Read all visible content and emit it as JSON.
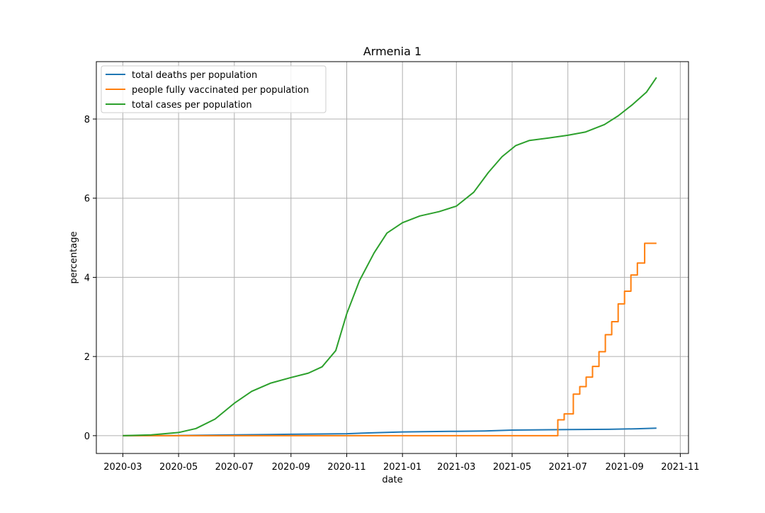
{
  "chart_data": {
    "type": "line",
    "title": "Armenia 1",
    "xlabel": "date",
    "ylabel": "percentage",
    "x_axis_type": "date",
    "xlim": [
      "2020-02-01",
      "2021-11-10"
    ],
    "ylim": [
      -0.45,
      9.45
    ],
    "grid": true,
    "legend_position": "top-left",
    "x_ticks": [
      "2020-03",
      "2020-05",
      "2020-07",
      "2020-09",
      "2020-11",
      "2021-01",
      "2021-03",
      "2021-05",
      "2021-07",
      "2021-09",
      "2021-11"
    ],
    "y_ticks": [
      0,
      2,
      4,
      6,
      8
    ],
    "series": [
      {
        "name": "total deaths per population",
        "color": "#1f77b4",
        "step": false,
        "points": [
          [
            "2020-03-01",
            0.0
          ],
          [
            "2020-05-01",
            0.003
          ],
          [
            "2020-07-01",
            0.02
          ],
          [
            "2020-09-01",
            0.035
          ],
          [
            "2020-11-01",
            0.05
          ],
          [
            "2020-12-01",
            0.075
          ],
          [
            "2021-01-01",
            0.095
          ],
          [
            "2021-03-01",
            0.11
          ],
          [
            "2021-04-01",
            0.12
          ],
          [
            "2021-05-01",
            0.14
          ],
          [
            "2021-07-01",
            0.155
          ],
          [
            "2021-08-15",
            0.16
          ],
          [
            "2021-09-15",
            0.175
          ],
          [
            "2021-10-06",
            0.19
          ]
        ]
      },
      {
        "name": "people fully vaccinated per population",
        "color": "#ff7f0e",
        "step": true,
        "points": [
          [
            "2020-03-01",
            0.0
          ],
          [
            "2021-06-20",
            0.0
          ],
          [
            "2021-06-20",
            0.4
          ],
          [
            "2021-06-27",
            0.55
          ],
          [
            "2021-07-07",
            1.05
          ],
          [
            "2021-07-14",
            1.24
          ],
          [
            "2021-07-21",
            1.48
          ],
          [
            "2021-07-28",
            1.75
          ],
          [
            "2021-08-04",
            2.12
          ],
          [
            "2021-08-11",
            2.55
          ],
          [
            "2021-08-18",
            2.88
          ],
          [
            "2021-08-25",
            3.33
          ],
          [
            "2021-09-01",
            3.65
          ],
          [
            "2021-09-08",
            4.06
          ],
          [
            "2021-09-15",
            4.36
          ],
          [
            "2021-09-23",
            4.86
          ],
          [
            "2021-10-06",
            4.86
          ]
        ]
      },
      {
        "name": "total cases per population",
        "color": "#2ca02c",
        "step": false,
        "points": [
          [
            "2020-03-01",
            0.0
          ],
          [
            "2020-04-01",
            0.02
          ],
          [
            "2020-05-01",
            0.08
          ],
          [
            "2020-05-20",
            0.18
          ],
          [
            "2020-06-10",
            0.42
          ],
          [
            "2020-07-01",
            0.82
          ],
          [
            "2020-07-20",
            1.12
          ],
          [
            "2020-08-10",
            1.33
          ],
          [
            "2020-09-01",
            1.47
          ],
          [
            "2020-09-20",
            1.58
          ],
          [
            "2020-10-05",
            1.74
          ],
          [
            "2020-10-20",
            2.15
          ],
          [
            "2020-11-01",
            3.08
          ],
          [
            "2020-11-15",
            3.92
          ],
          [
            "2020-12-01",
            4.62
          ],
          [
            "2020-12-15",
            5.12
          ],
          [
            "2021-01-01",
            5.38
          ],
          [
            "2021-01-20",
            5.55
          ],
          [
            "2021-02-10",
            5.66
          ],
          [
            "2021-03-01",
            5.8
          ],
          [
            "2021-03-20",
            6.15
          ],
          [
            "2021-04-05",
            6.65
          ],
          [
            "2021-04-20",
            7.05
          ],
          [
            "2021-05-05",
            7.33
          ],
          [
            "2021-05-20",
            7.46
          ],
          [
            "2021-06-10",
            7.52
          ],
          [
            "2021-07-01",
            7.59
          ],
          [
            "2021-07-20",
            7.67
          ],
          [
            "2021-08-10",
            7.86
          ],
          [
            "2021-08-25",
            8.08
          ],
          [
            "2021-09-10",
            8.37
          ],
          [
            "2021-09-25",
            8.68
          ],
          [
            "2021-10-06",
            9.05
          ]
        ]
      }
    ]
  }
}
